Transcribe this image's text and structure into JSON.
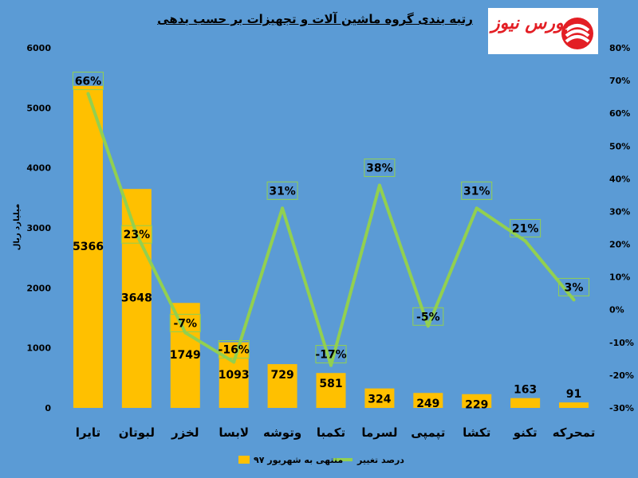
{
  "title": "رتبه بندی گروه ماشین آلات و تجهیزات بر حسب بدهی",
  "logo_text": "بورس نیوز",
  "colors": {
    "background": "#5b9bd5",
    "bar": "#ffc000",
    "line": "#92d050",
    "label_border": "#92d050",
    "logo_red": "#e31e24"
  },
  "chart_data": {
    "type": "bar",
    "categories": [
      "تایرا",
      "لبوتان",
      "لخزر",
      "لابسا",
      "وتوشه",
      "تکمبا",
      "لسرما",
      "تپمپی",
      "تکشا",
      "تکنو",
      "تمحرکه"
    ],
    "series": [
      {
        "name": "منتهی به شهریور ۹۷",
        "type": "bar",
        "axis": "left",
        "values": [
          5366,
          3648,
          1749,
          1093,
          729,
          581,
          324,
          249,
          229,
          163,
          91
        ]
      },
      {
        "name": "درصد تغییر",
        "type": "line",
        "axis": "right",
        "values": [
          66,
          23,
          -7,
          -16,
          31,
          -17,
          38,
          -5,
          31,
          21,
          3
        ]
      }
    ],
    "bar_labels": [
      "5366",
      "3648",
      "1749",
      "1093",
      "729",
      "581",
      "324",
      "249",
      "229",
      "163",
      "91"
    ],
    "line_labels": [
      "66%",
      "23%",
      "-7%",
      "-16%",
      "31%",
      "-17%",
      "38%",
      "-5%",
      "31%",
      "21%",
      "3%"
    ],
    "ylabel": "میلیارد ریال",
    "ylim": [
      0,
      6000
    ],
    "y_ticks": [
      "0",
      "1000",
      "2000",
      "3000",
      "4000",
      "5000",
      "6000"
    ],
    "y2lim": [
      -30,
      80
    ],
    "y2_ticks": [
      "-30%",
      "-20%",
      "-10%",
      "0%",
      "10%",
      "20%",
      "30%",
      "40%",
      "50%",
      "60%",
      "70%",
      "80%"
    ],
    "legend_position": "bottom",
    "grid": false
  }
}
